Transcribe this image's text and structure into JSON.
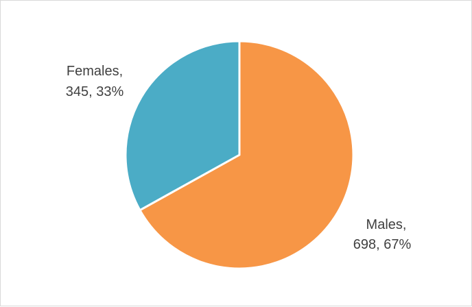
{
  "chart_data": {
    "type": "pie",
    "title": "",
    "slices": [
      {
        "category": "Males",
        "value": 698,
        "percent": "67%",
        "label_line1": "Males,",
        "label_line2": "698, 67%",
        "color": "#F79646"
      },
      {
        "category": "Females",
        "value": 345,
        "percent": "33%",
        "label_line1": "Females,",
        "label_line2": "345, 33%",
        "color": "#4BACC6"
      }
    ],
    "legend": "none"
  }
}
